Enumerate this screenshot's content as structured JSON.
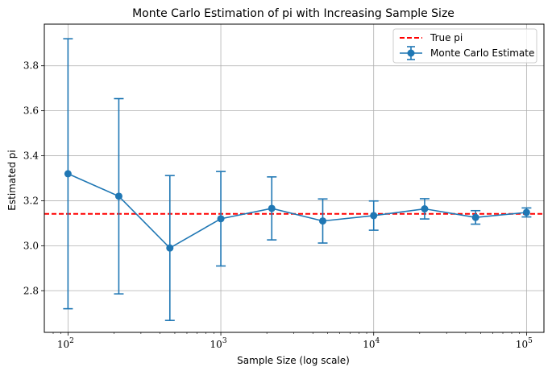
{
  "chart_data": {
    "type": "line",
    "title": "Monte Carlo Estimation of pi with Increasing Sample Size",
    "xlabel": "Sample Size (log scale)",
    "ylabel": "Estimated pi",
    "xscale": "log",
    "xlim": [
      70,
      130000
    ],
    "ylim": [
      2.615,
      3.985
    ],
    "grid": true,
    "legend_position": "top-right",
    "xticks": [
      {
        "value": 100,
        "base": "10",
        "exp": "2"
      },
      {
        "value": 1000,
        "base": "10",
        "exp": "3"
      },
      {
        "value": 10000,
        "base": "10",
        "exp": "4"
      },
      {
        "value": 100000,
        "base": "10",
        "exp": "5"
      }
    ],
    "yticks": [
      {
        "value": 2.8,
        "label": "2.8"
      },
      {
        "value": 3.0,
        "label": "3.0"
      },
      {
        "value": 3.2,
        "label": "3.2"
      },
      {
        "value": 3.4,
        "label": "3.4"
      },
      {
        "value": 3.6,
        "label": "3.6"
      },
      {
        "value": 3.8,
        "label": "3.8"
      }
    ],
    "series": [
      {
        "name": "Monte Carlo Estimate",
        "color": "#1f77b4",
        "x": [
          100,
          215,
          464,
          1000,
          2154,
          4642,
          10000,
          21544,
          46416,
          100000
        ],
        "y": [
          3.32,
          3.22,
          2.99,
          3.12,
          3.166,
          3.11,
          3.134,
          3.164,
          3.126,
          3.148
        ],
        "err": [
          0.6,
          0.434,
          0.322,
          0.21,
          0.14,
          0.098,
          0.065,
          0.045,
          0.03,
          0.02
        ]
      }
    ],
    "reference_line": {
      "name": "True pi",
      "value": 3.14159,
      "color": "#ff0000",
      "style": "dashed"
    }
  }
}
